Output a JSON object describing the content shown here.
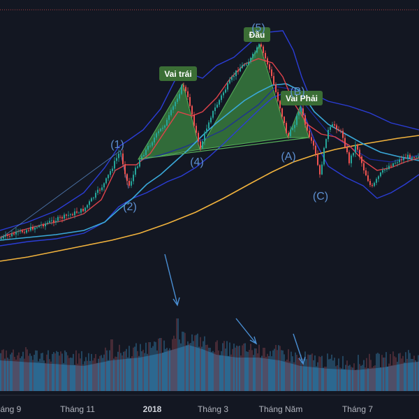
{
  "chart_data": {
    "type": "candlestick",
    "title": "",
    "x_ticks": [
      {
        "label": "háng 9",
        "bold": false
      },
      {
        "label": "Tháng 11",
        "bold": false
      },
      {
        "label": "2018",
        "bold": true
      },
      {
        "label": "Tháng 3",
        "bold": false
      },
      {
        "label": "Tháng Năm",
        "bold": false
      },
      {
        "label": "Tháng 7",
        "bold": false
      }
    ],
    "pattern_labels": [
      {
        "id": "left-shoulder",
        "text": "Vai trái"
      },
      {
        "id": "head",
        "text": "Đầu"
      },
      {
        "id": "right-shoulder",
        "text": "Vai Phải"
      }
    ],
    "wave_labels": [
      {
        "id": "w1",
        "text": "(1)"
      },
      {
        "id": "w2",
        "text": "(2)"
      },
      {
        "id": "w4",
        "text": "(4)"
      },
      {
        "id": "w5",
        "text": "(5)"
      },
      {
        "id": "wA",
        "text": "(A)"
      },
      {
        "id": "wB",
        "text": "(B)"
      },
      {
        "id": "wC",
        "text": "(C)"
      }
    ],
    "colors": {
      "background": "#131722",
      "up": "#26a69a",
      "down": "#ef5350",
      "ma_short": "#e0434b",
      "ma_mid": "#3aa9d9",
      "ma_long": "#f2b33d",
      "bands": "#2b3dd6",
      "pattern_fill": "#43a047",
      "volume": "#2f7fb5",
      "wave_label": "#5d8fd0",
      "annotation_arrow": "#4a8fd4"
    }
  }
}
